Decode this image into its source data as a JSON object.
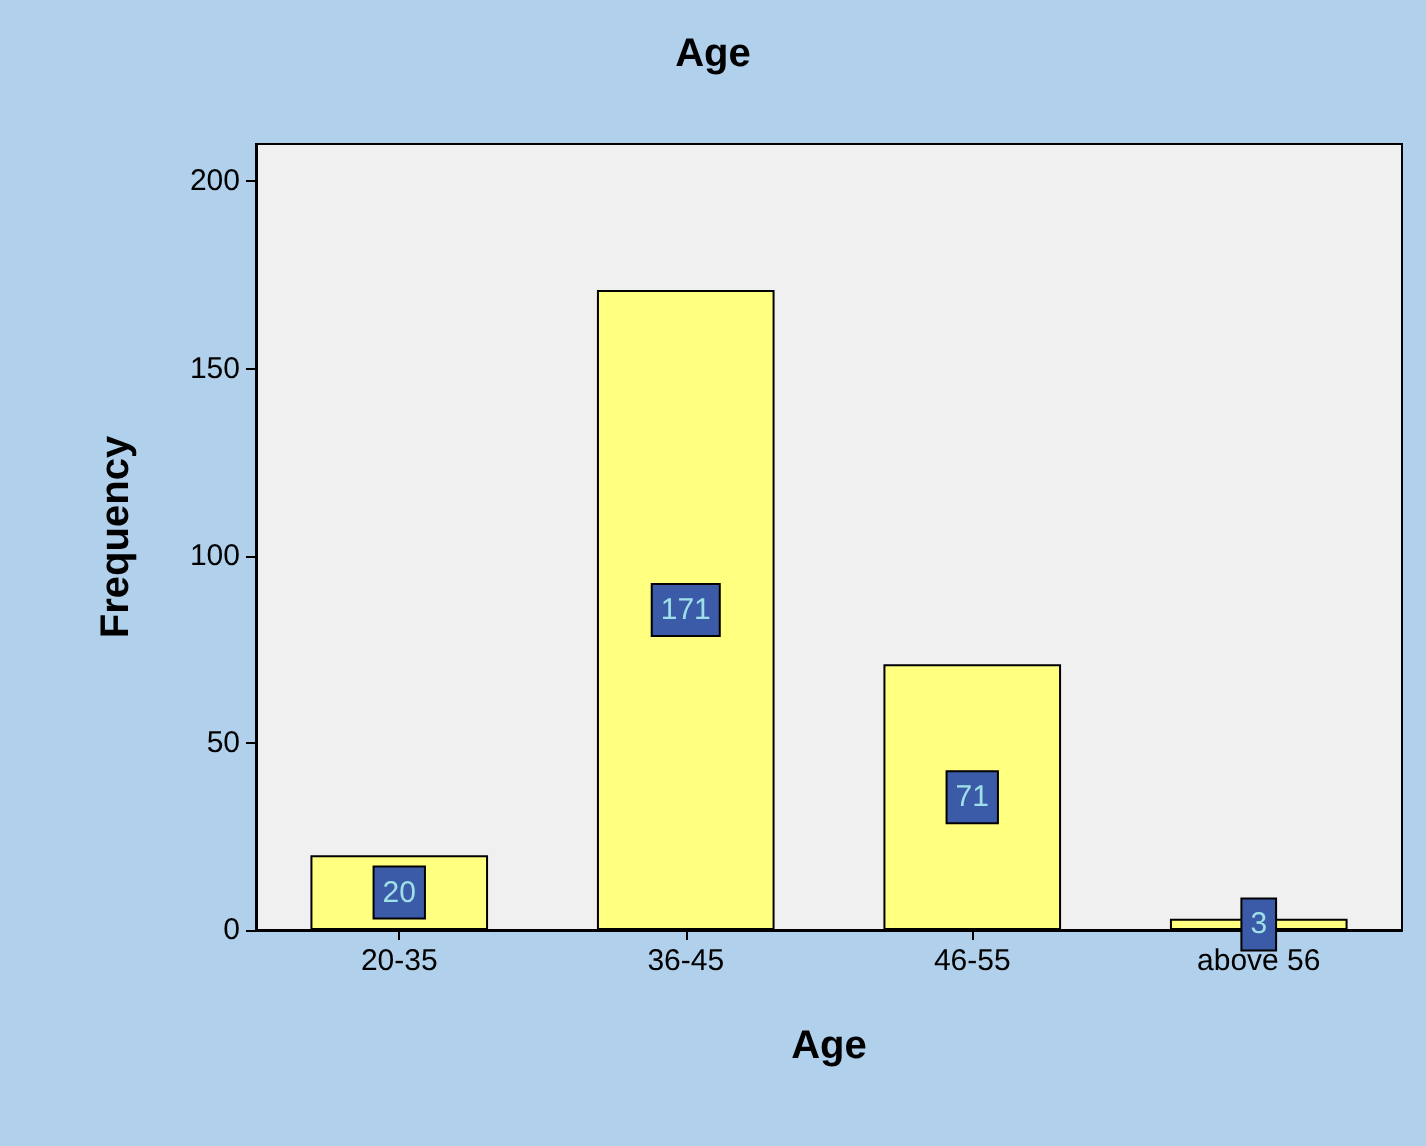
{
  "chart_data": {
    "type": "bar",
    "title": "Age",
    "xlabel": "Age",
    "ylabel": "Frequency",
    "categories": [
      "20-35",
      "36-45",
      "46-55",
      "above 56"
    ],
    "values": [
      20,
      171,
      71,
      3
    ],
    "color": "#ffff80",
    "ylim": [
      0,
      210
    ],
    "yticks": [
      0,
      50,
      100,
      150,
      200
    ],
    "grid": false,
    "data_labels": true
  }
}
